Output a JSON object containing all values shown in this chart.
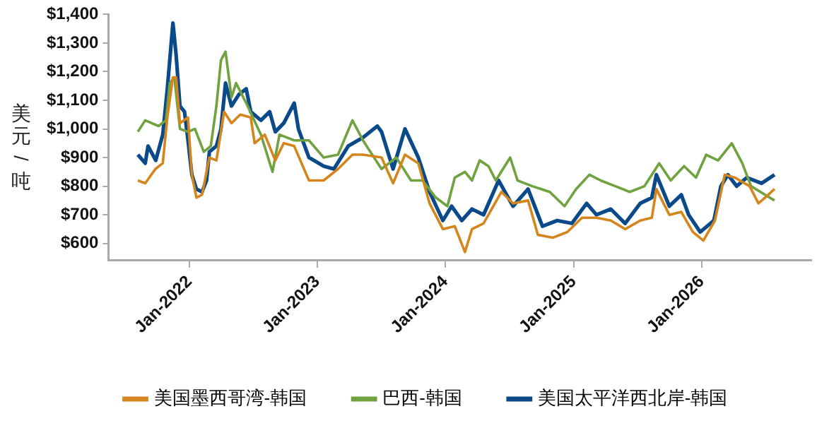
{
  "chart_data": {
    "type": "line",
    "ylabel": "美元/吨",
    "legend": "bottom",
    "grid": false,
    "marker": "none",
    "line_style": "solid",
    "xlim": [
      "2021-05-15",
      "2026-11-10"
    ],
    "xticks": [
      {
        "value": "2022-01-01",
        "label": "Jan-2022"
      },
      {
        "value": "2023-01-01",
        "label": "Jan-2023"
      },
      {
        "value": "2024-01-01",
        "label": "Jan-2024"
      },
      {
        "value": "2025-01-01",
        "label": "Jan-2025"
      },
      {
        "value": "2026-01-01",
        "label": "Jan-2026"
      }
    ],
    "ylim": [
      540,
      1400
    ],
    "yticks": [
      {
        "value": 600,
        "label": "$600"
      },
      {
        "value": 700,
        "label": "$700"
      },
      {
        "value": 800,
        "label": "$800"
      },
      {
        "value": 900,
        "label": "$900"
      },
      {
        "value": 1000,
        "label": "$1,000"
      },
      {
        "value": 1100,
        "label": "$1,100"
      },
      {
        "value": 1200,
        "label": "$1,200"
      },
      {
        "value": 1300,
        "label": "$1,300"
      },
      {
        "value": 1400,
        "label": "$1,400"
      }
    ],
    "series": [
      {
        "name": "美国墨西哥湾-韩国",
        "color": "#d4861c",
        "x": [
          "2021-08-07",
          "2021-08-28",
          "2021-09-26",
          "2021-10-17",
          "2021-10-30",
          "2021-11-15",
          "2021-11-24",
          "2021-12-05",
          "2021-12-28",
          "2022-01-08",
          "2022-01-21",
          "2022-02-06",
          "2022-02-27",
          "2022-03-19",
          "2022-04-10",
          "2022-05-01",
          "2022-05-26",
          "2022-06-25",
          "2022-07-06",
          "2022-08-04",
          "2022-09-03",
          "2022-09-27",
          "2022-10-27",
          "2022-12-08",
          "2023-01-19",
          "2023-03-01",
          "2023-04-11",
          "2023-05-11",
          "2023-07-03",
          "2023-08-05",
          "2023-09-08",
          "2023-10-16",
          "2023-11-17",
          "2023-12-25",
          "2024-01-28",
          "2024-02-26",
          "2024-03-17",
          "2024-04-19",
          "2024-06-09",
          "2024-07-12",
          "2024-08-24",
          "2024-09-21",
          "2024-11-02",
          "2024-12-14",
          "2025-01-25",
          "2025-03-07",
          "2025-04-17",
          "2025-05-28",
          "2025-07-10",
          "2025-08-12",
          "2025-08-25",
          "2025-10-01",
          "2025-11-04",
          "2025-12-07",
          "2026-01-06",
          "2026-02-08",
          "2026-03-08",
          "2026-04-06",
          "2026-05-18",
          "2026-06-12",
          "2026-07-01",
          "2026-07-28"
        ],
        "values": [
          820,
          810,
          860,
          880,
          1040,
          1180,
          1180,
          1020,
          1040,
          840,
          760,
          770,
          900,
          890,
          1060,
          1020,
          1050,
          1040,
          950,
          980,
          890,
          950,
          940,
          820,
          820,
          860,
          910,
          910,
          900,
          810,
          910,
          880,
          740,
          650,
          660,
          570,
          650,
          670,
          780,
          740,
          750,
          630,
          620,
          640,
          690,
          690,
          680,
          650,
          680,
          690,
          790,
          700,
          710,
          640,
          610,
          680,
          840,
          830,
          800,
          740,
          760,
          790
        ]
      },
      {
        "name": "巴西-韩国",
        "color": "#70a33f",
        "x": [
          "2021-08-07",
          "2021-08-28",
          "2021-10-05",
          "2021-10-26",
          "2021-11-06",
          "2021-11-19",
          "2021-12-05",
          "2021-12-28",
          "2022-01-17",
          "2022-02-11",
          "2022-03-03",
          "2022-03-19",
          "2022-04-01",
          "2022-04-14",
          "2022-05-01",
          "2022-05-14",
          "2022-06-12",
          "2022-07-24",
          "2022-08-26",
          "2022-09-15",
          "2022-10-27",
          "2022-12-08",
          "2023-01-19",
          "2023-03-01",
          "2023-04-11",
          "2023-05-11",
          "2023-07-03",
          "2023-08-14",
          "2023-09-25",
          "2023-10-28",
          "2023-12-05",
          "2024-01-07",
          "2024-01-28",
          "2024-02-26",
          "2024-03-17",
          "2024-04-08",
          "2024-05-03",
          "2024-05-24",
          "2024-07-04",
          "2024-07-25",
          "2024-09-05",
          "2024-10-25",
          "2024-12-06",
          "2025-01-08",
          "2025-02-15",
          "2025-03-19",
          "2025-04-30",
          "2025-06-10",
          "2025-07-22",
          "2025-09-02",
          "2025-10-05",
          "2025-11-12",
          "2025-12-16",
          "2026-01-14",
          "2026-02-17",
          "2026-03-28",
          "2026-04-27",
          "2026-05-22",
          "2026-07-01",
          "2026-07-28"
        ],
        "values": [
          990,
          1030,
          1010,
          1030,
          1160,
          1180,
          1000,
          990,
          1000,
          920,
          940,
          1080,
          1240,
          1270,
          1110,
          1160,
          1090,
          980,
          850,
          980,
          960,
          960,
          900,
          910,
          1030,
          960,
          860,
          900,
          820,
          820,
          760,
          730,
          830,
          850,
          820,
          890,
          870,
          820,
          900,
          820,
          800,
          780,
          730,
          790,
          840,
          820,
          800,
          780,
          800,
          880,
          820,
          870,
          830,
          910,
          890,
          950,
          880,
          800,
          770,
          750
        ]
      },
      {
        "name": "美国太平洋西北岸-韩国",
        "color": "#0a4a8a",
        "x": [
          "2021-08-07",
          "2021-08-28",
          "2021-09-05",
          "2021-09-27",
          "2021-10-17",
          "2021-10-30",
          "2021-11-15",
          "2021-11-24",
          "2021-12-05",
          "2021-12-18",
          "2021-12-28",
          "2022-01-08",
          "2022-01-21",
          "2022-02-06",
          "2022-02-19",
          "2022-02-27",
          "2022-03-19",
          "2022-04-01",
          "2022-04-14",
          "2022-05-01",
          "2022-05-22",
          "2022-06-12",
          "2022-06-25",
          "2022-07-24",
          "2022-08-18",
          "2022-09-03",
          "2022-09-27",
          "2022-10-27",
          "2022-11-08",
          "2022-12-08",
          "2023-01-19",
          "2023-02-17",
          "2023-03-30",
          "2023-05-11",
          "2023-06-21",
          "2023-07-03",
          "2023-08-05",
          "2023-09-08",
          "2023-10-16",
          "2023-11-17",
          "2023-12-25",
          "2024-01-19",
          "2024-02-17",
          "2024-03-17",
          "2024-04-19",
          "2024-06-01",
          "2024-07-12",
          "2024-08-24",
          "2024-10-04",
          "2024-11-15",
          "2024-12-27",
          "2025-02-07",
          "2025-03-07",
          "2025-04-17",
          "2025-05-28",
          "2025-07-10",
          "2025-08-12",
          "2025-08-25",
          "2025-10-01",
          "2025-11-04",
          "2025-11-25",
          "2025-12-28",
          "2026-02-05",
          "2026-02-25",
          "2026-03-17",
          "2026-04-11",
          "2026-05-10",
          "2026-06-21",
          "2026-07-28"
        ],
        "values": [
          910,
          880,
          940,
          890,
          980,
          1140,
          1370,
          1260,
          1080,
          1060,
          960,
          840,
          790,
          780,
          820,
          920,
          940,
          1000,
          1160,
          1080,
          1120,
          1140,
          1060,
          1030,
          1060,
          990,
          1020,
          1090,
          1000,
          900,
          870,
          860,
          940,
          970,
          1010,
          990,
          860,
          1000,
          900,
          780,
          680,
          730,
          680,
          720,
          700,
          820,
          730,
          790,
          660,
          680,
          670,
          740,
          700,
          720,
          670,
          740,
          760,
          840,
          730,
          770,
          700,
          640,
          680,
          800,
          840,
          800,
          830,
          810,
          840
        ]
      }
    ]
  }
}
